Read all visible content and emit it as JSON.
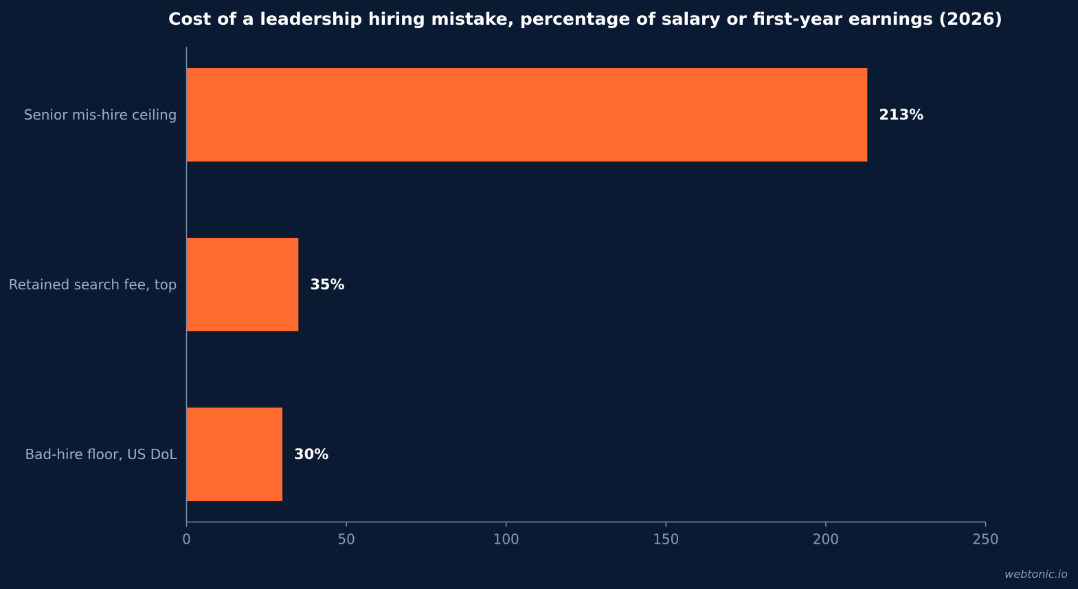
{
  "colors": {
    "background": "#0b1a33",
    "bar": "#ff6b2f",
    "axis": "#7f8fa8",
    "title": "#ffffff",
    "category_text": "#9fb0c6",
    "tick_text": "#8a9bb2",
    "value_text": "#ffffff"
  },
  "watermark": "webtonic.io",
  "chart_data": {
    "type": "bar",
    "orientation": "horizontal",
    "title": "Cost of a leadership hiring mistake, percentage of salary or first-year earnings (2026)",
    "xlabel": "",
    "ylabel": "",
    "categories": [
      "Senior mis-hire ceiling",
      "Retained search fee, top",
      "Bad-hire floor, US DoL"
    ],
    "values": [
      213,
      35,
      30
    ],
    "value_labels": [
      "213%",
      "35%",
      "30%"
    ],
    "xlim": [
      0,
      250
    ],
    "xticks": [
      0,
      50,
      100,
      150,
      200,
      250
    ],
    "grid": false,
    "legend": "none"
  }
}
